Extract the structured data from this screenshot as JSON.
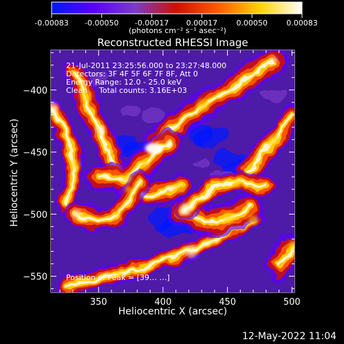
{
  "colorbar": {
    "tick_labels": [
      "-0.00083",
      "-0.00050",
      "-0.00017",
      "0.00017",
      "0.00050",
      "0.00083"
    ],
    "units_label": "(photons cm⁻² s⁻¹ asec⁻²)",
    "colors": [
      "#0018ff",
      "#5a00ff",
      "#7a3cc8",
      "#d01000",
      "#ff5c00",
      "#ffd400",
      "#ffffff"
    ]
  },
  "image_title": "Reconstructed RHESSI Image",
  "overlay_text": {
    "time_range": "21-Jul-2011 23:25:56.000 to 23:27:48.000",
    "detectors": "Detectors: 3F 4F 5F 6F 7F 8F, Att 0",
    "energy_range": "Energy Range: 12.0 - 25.0 keV",
    "clean_label": "Clean",
    "total_counts": "Total counts: 3.16E+03",
    "peak_position": "Position of Peak = [39… …]"
  },
  "chart_data": {
    "type": "heatmap",
    "title": "Reconstructed RHESSI Image",
    "xlabel": "Heliocentric X (arcsec)",
    "ylabel": "Heliocentric Y (arcsec)",
    "xlim": [
      313,
      502
    ],
    "ylim": [
      -563,
      -368
    ],
    "x_ticks": [
      350,
      400,
      450,
      500
    ],
    "y_ticks": [
      -400,
      -450,
      -500,
      -550
    ],
    "y_tick_labels": [
      "−400",
      "−450",
      "−500",
      "−550"
    ],
    "value_range": [
      -0.00083,
      0.00083
    ],
    "colormap": [
      "#0018ff",
      "#5a00ff",
      "#7a3cc8",
      "#d01000",
      "#ff5c00",
      "#ffd400",
      "#ffffff"
    ],
    "bright_ridges": [
      [
        [
          486,
          -376
        ],
        [
          455,
          -398
        ],
        [
          431,
          -412
        ],
        [
          401,
          -436
        ],
        [
          386,
          -460
        ]
      ],
      [
        [
          332,
          -386
        ],
        [
          340,
          -405
        ],
        [
          345,
          -422
        ],
        [
          351,
          -432
        ],
        [
          361,
          -455
        ],
        [
          373,
          -480
        ],
        [
          392,
          -485
        ],
        [
          413,
          -478
        ]
      ],
      [
        [
          314,
          -415
        ],
        [
          324,
          -435
        ],
        [
          332,
          -460
        ],
        [
          325,
          -492
        ]
      ],
      [
        [
          350,
          -470
        ],
        [
          372,
          -471
        ],
        [
          395,
          -450
        ],
        [
          405,
          -443
        ]
      ],
      [
        [
          333,
          -500
        ],
        [
          351,
          -505
        ],
        [
          365,
          -500
        ],
        [
          382,
          -475
        ]
      ],
      [
        [
          326,
          -558
        ],
        [
          366,
          -548
        ],
        [
          394,
          -540
        ],
        [
          422,
          -530
        ],
        [
          446,
          -515
        ],
        [
          470,
          -505
        ]
      ],
      [
        [
          415,
          -498
        ],
        [
          433,
          -506
        ],
        [
          451,
          -503
        ],
        [
          468,
          -494
        ]
      ],
      [
        [
          466,
          -466
        ],
        [
          486,
          -441
        ],
        [
          501,
          -420
        ]
      ],
      [
        [
          418,
          -496
        ],
        [
          440,
          -478
        ],
        [
          458,
          -475
        ],
        [
          480,
          -477
        ]
      ],
      [
        [
          490,
          -542
        ],
        [
          501,
          -525
        ]
      ]
    ],
    "dark_spots": [
      [
        [
          370,
          -442
        ],
        [
          380,
          -446
        ]
      ],
      [
        [
          400,
          -503
        ],
        [
          412,
          -510
        ]
      ],
      [
        [
          452,
          -455
        ],
        [
          462,
          -462
        ]
      ],
      [
        [
          430,
          -434
        ],
        [
          438,
          -438
        ]
      ]
    ],
    "peak": [
      393,
      -447
    ]
  },
  "footer": {
    "date_label": "12-May-2022 11:04"
  }
}
